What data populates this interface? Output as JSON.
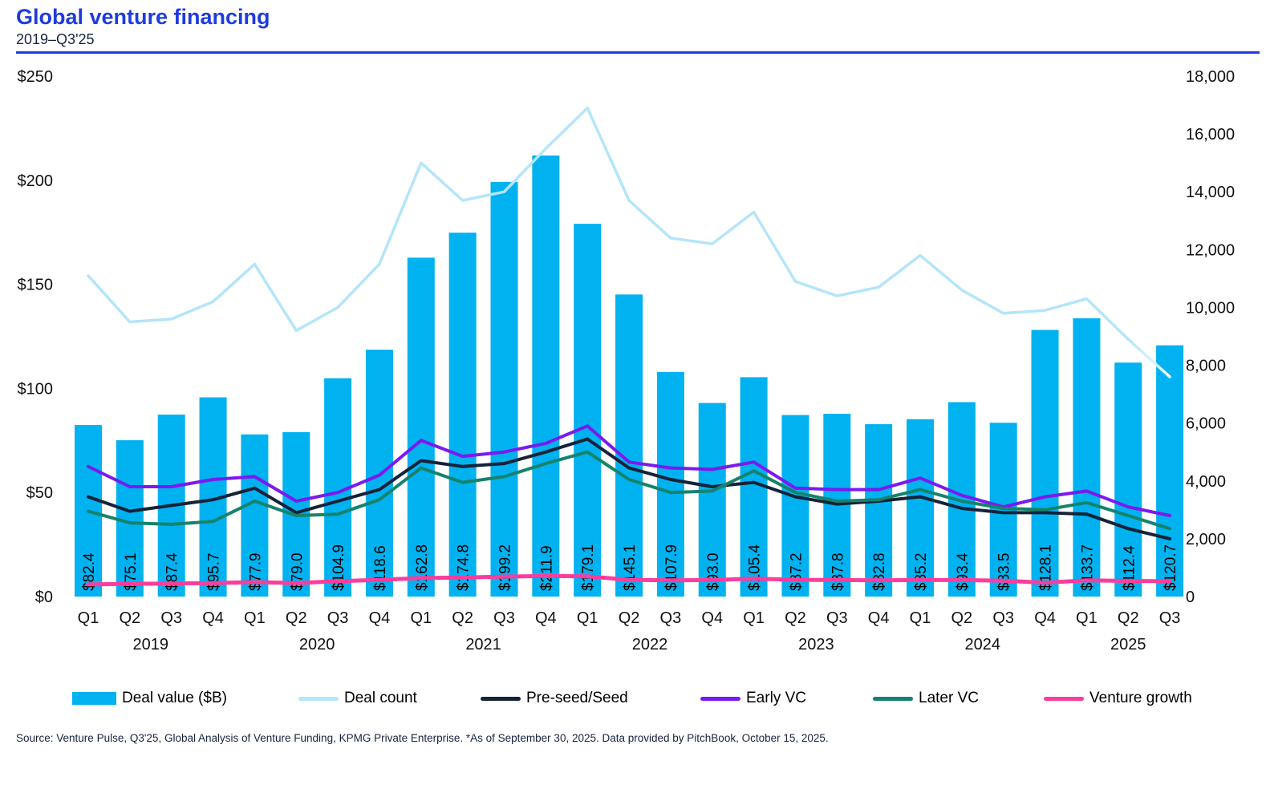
{
  "header": {
    "title": "Global venture financing",
    "subtitle": "2019–Q3'25"
  },
  "source_note": "Source: Venture Pulse, Q3'25, Global Analysis of Venture Funding, KPMG Private Enterprise. *As of September 30, 2025. Data provided by PitchBook, October 15, 2025.",
  "colors": {
    "title_accent": "#1e3be1",
    "divider": "#1e3be1",
    "axis_text": "#111111",
    "bar_label_text": "#000000",
    "deal_count_fade_tip": "#f2fbff"
  },
  "chart_data": {
    "type": "bar",
    "title": "Global venture financing",
    "subtitle": "2019–Q3'25",
    "quarters": [
      "Q1",
      "Q2",
      "Q3",
      "Q4",
      "Q1",
      "Q2",
      "Q3",
      "Q4",
      "Q1",
      "Q2",
      "Q3",
      "Q4",
      "Q1",
      "Q2",
      "Q3",
      "Q4",
      "Q1",
      "Q2",
      "Q3",
      "Q4",
      "Q1",
      "Q2",
      "Q3",
      "Q4",
      "Q1",
      "Q2",
      "Q3"
    ],
    "year_groups": [
      {
        "label": "2019",
        "count": 4
      },
      {
        "label": "2020",
        "count": 4
      },
      {
        "label": "2021",
        "count": 4
      },
      {
        "label": "2022",
        "count": 4
      },
      {
        "label": "2023",
        "count": 4
      },
      {
        "label": "2024",
        "count": 4
      },
      {
        "label": "2025",
        "count": 3
      }
    ],
    "bar_series": {
      "name": "Deal value ($B)",
      "axis": "left",
      "color": "#00b2f0",
      "values": [
        82.4,
        75.1,
        87.4,
        95.7,
        77.9,
        79.0,
        104.9,
        118.6,
        162.8,
        174.8,
        199.2,
        211.9,
        179.1,
        145.1,
        107.9,
        93.0,
        105.4,
        87.2,
        87.8,
        82.8,
        85.2,
        93.4,
        83.5,
        128.1,
        133.7,
        112.4,
        120.7
      ]
    },
    "line_series": [
      {
        "name": "Deal count",
        "axis": "right",
        "color": "#b4e5fa",
        "fade_tail": true,
        "values": [
          11100,
          9500,
          9600,
          10200,
          11500,
          9200,
          10000,
          11500,
          15000,
          13700,
          14000,
          15500,
          16900,
          13700,
          12400,
          12200,
          13300,
          10900,
          10400,
          10700,
          11800,
          10600,
          9800,
          9900,
          10300,
          8900,
          7600
        ]
      },
      {
        "name": "Pre-seed/Seed",
        "axis": "right",
        "color": "#152238",
        "fade_tail": false,
        "values": [
          3450,
          2950,
          3150,
          3350,
          3750,
          2900,
          3300,
          3700,
          4700,
          4500,
          4600,
          5000,
          5450,
          4450,
          4050,
          3800,
          3950,
          3450,
          3200,
          3300,
          3450,
          3050,
          2900,
          2900,
          2850,
          2350,
          2000
        ]
      },
      {
        "name": "Early VC",
        "axis": "right",
        "color": "#7a1af0",
        "fade_tail": false,
        "values": [
          4500,
          3800,
          3800,
          4050,
          4150,
          3300,
          3600,
          4200,
          5400,
          4850,
          5000,
          5300,
          5900,
          4650,
          4450,
          4400,
          4650,
          3750,
          3700,
          3700,
          4100,
          3500,
          3100,
          3450,
          3650,
          3100,
          2800
        ]
      },
      {
        "name": "Later VC",
        "axis": "right",
        "color": "#15836c",
        "fade_tail": false,
        "values": [
          2950,
          2550,
          2500,
          2600,
          3300,
          2800,
          2850,
          3350,
          4450,
          3950,
          4150,
          4600,
          5000,
          4050,
          3600,
          3650,
          4350,
          3600,
          3300,
          3350,
          3700,
          3300,
          3050,
          3000,
          3250,
          2800,
          2350
        ]
      },
      {
        "name": "Venture growth",
        "axis": "right",
        "color": "#fb3d9d",
        "fade_tail": false,
        "values": [
          420,
          440,
          450,
          470,
          500,
          470,
          530,
          580,
          640,
          660,
          690,
          710,
          700,
          580,
          560,
          570,
          620,
          580,
          570,
          560,
          570,
          570,
          550,
          480,
          560,
          540,
          530
        ]
      }
    ],
    "left_axis": {
      "max": 250,
      "ticks": [
        {
          "label": "$0",
          "value": 0
        },
        {
          "label": "$50",
          "value": 50
        },
        {
          "label": "$100",
          "value": 100
        },
        {
          "label": "$150",
          "value": 150
        },
        {
          "label": "$200",
          "value": 200
        },
        {
          "label": "$250",
          "value": 250
        }
      ]
    },
    "right_axis": {
      "max": 18000,
      "ticks": [
        {
          "label": "0",
          "value": 0
        },
        {
          "label": "2,000",
          "value": 2000
        },
        {
          "label": "4,000",
          "value": 4000
        },
        {
          "label": "6,000",
          "value": 6000
        },
        {
          "label": "8,000",
          "value": 8000
        },
        {
          "label": "10,000",
          "value": 10000
        },
        {
          "label": "12,000",
          "value": 12000
        },
        {
          "label": "14,000",
          "value": 14000
        },
        {
          "label": "16,000",
          "value": 16000
        },
        {
          "label": "18,000",
          "value": 18000
        }
      ]
    },
    "legend_position": "bottom",
    "grid": false
  }
}
